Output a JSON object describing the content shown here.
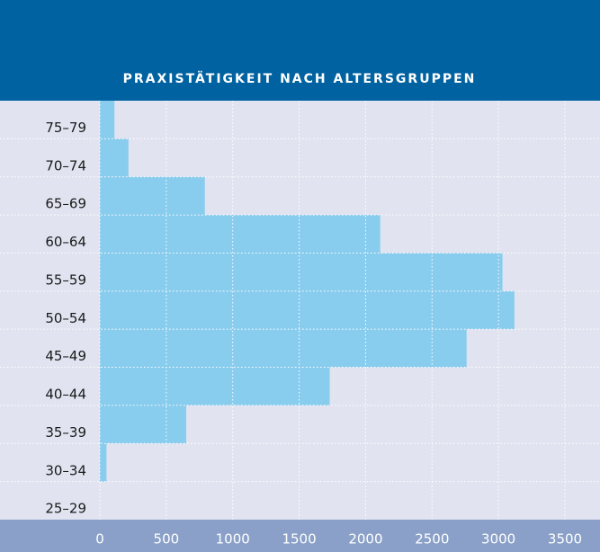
{
  "chart_data": {
    "type": "bar",
    "orientation": "horizontal",
    "title": "PRAXISTÄTIGKEIT NACH ALTERSGRUPPEN",
    "categories": [
      "75–79",
      "70–74",
      "65–69",
      "60–64",
      "55–59",
      "50–54",
      "45–49",
      "40–44",
      "35–39",
      "30–34",
      "25–29"
    ],
    "values": [
      110,
      215,
      790,
      2110,
      3030,
      3120,
      2760,
      1730,
      650,
      50,
      0
    ],
    "color": "#88ccee",
    "xlim": [
      0,
      3500
    ],
    "xticks": [
      0,
      500,
      1000,
      1500,
      2000,
      2500,
      3000,
      3500
    ],
    "grid": true
  }
}
